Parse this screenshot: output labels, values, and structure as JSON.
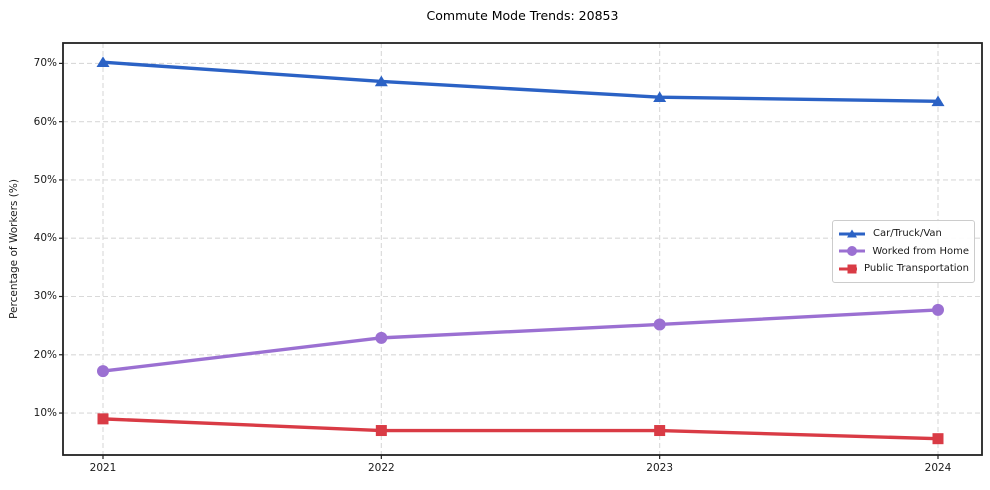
{
  "title": "Commute Mode Trends: 20853",
  "chart_data": {
    "type": "line",
    "title": "Commute Mode Trends: 20853",
    "xlabel": "",
    "ylabel": "Percentage of Workers (%)",
    "x": [
      "2021",
      "2022",
      "2023",
      "2024"
    ],
    "series": [
      {
        "name": "Car/Truck/Van",
        "values": [
          70.2,
          66.9,
          64.2,
          63.5
        ],
        "color": "#2b62c5",
        "marker": "triangle"
      },
      {
        "name": "Worked from Home",
        "values": [
          17.2,
          22.9,
          25.2,
          27.7
        ],
        "color": "#9b70d2",
        "marker": "circle"
      },
      {
        "name": "Public Transportation",
        "values": [
          9.0,
          7.0,
          7.0,
          5.6
        ],
        "color": "#d93b45",
        "marker": "square"
      }
    ],
    "ylim": [
      2.8,
      73.5
    ],
    "yticks": [
      10,
      20,
      30,
      40,
      50,
      60,
      70
    ],
    "ytick_suffix": "%",
    "grid": true,
    "legend_position": "center-right"
  },
  "colors": {
    "background": "#ffffff",
    "grid": "#d9d9d9",
    "spine": "#222222",
    "text": "#1a1a1a"
  }
}
